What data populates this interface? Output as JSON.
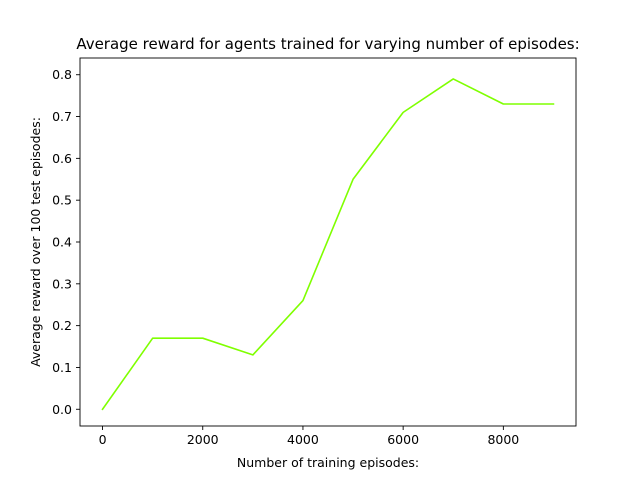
{
  "chart_data": {
    "type": "line",
    "title": "Average reward for agents trained for varying number of episodes:",
    "xlabel": "Number of training episodes:",
    "ylabel": "Average reward over 100 test episodes:",
    "xlim": [
      -450,
      9450
    ],
    "ylim": [
      -0.04,
      0.84
    ],
    "xticks": [
      0,
      2000,
      4000,
      6000,
      8000
    ],
    "yticks": [
      0.0,
      0.1,
      0.2,
      0.3,
      0.4,
      0.5,
      0.6,
      0.7,
      0.8
    ],
    "xtick_labels": [
      "0",
      "2000",
      "4000",
      "6000",
      "8000"
    ],
    "ytick_labels": [
      "0.0",
      "0.1",
      "0.2",
      "0.3",
      "0.4",
      "0.5",
      "0.6",
      "0.7",
      "0.8"
    ],
    "grid": false,
    "series": [
      {
        "color": "#7fff00",
        "x": [
          0,
          1000,
          2000,
          3000,
          4000,
          5000,
          6000,
          7000,
          8000,
          9000
        ],
        "y": [
          0.0,
          0.17,
          0.17,
          0.13,
          0.26,
          0.55,
          0.71,
          0.79,
          0.73,
          0.73
        ]
      }
    ]
  }
}
